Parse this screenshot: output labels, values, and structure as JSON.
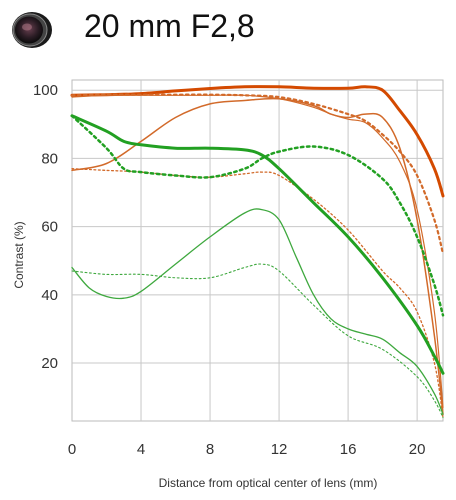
{
  "header": {
    "title": "20 mm F2,8",
    "icon": "lens-icon"
  },
  "chart_data": {
    "type": "line",
    "title": "20 mm F2,8",
    "xlabel": "Distance from optical center of lens (mm)",
    "ylabel": "Contrast (%)",
    "xlim": [
      0,
      21.5
    ],
    "ylim": [
      3,
      103
    ],
    "xticks": [
      "0",
      "4",
      "8",
      "12",
      "16",
      "20"
    ],
    "xtick_values": [
      0,
      4,
      8,
      12,
      16,
      20
    ],
    "yticks": [
      "20",
      "40",
      "60",
      "80",
      "100"
    ],
    "ytick_values": [
      20,
      40,
      60,
      80,
      100
    ],
    "grid": true,
    "legend": "none",
    "series": [
      {
        "color": "#d44a00",
        "width": 3,
        "dash": "solid",
        "x": [
          0,
          2,
          4,
          6,
          8,
          10,
          12,
          14,
          16,
          17,
          18,
          19,
          20,
          21,
          21.5
        ],
        "y": [
          98.5,
          98.7,
          99,
          99.8,
          100.5,
          101,
          101,
          100.6,
          100.6,
          101,
          100,
          94,
          87,
          77,
          69
        ]
      },
      {
        "color": "#d26a2a",
        "width": 1.5,
        "dash": "solid",
        "x": [
          0,
          2,
          4,
          6,
          8,
          10,
          12,
          14,
          15,
          16,
          17,
          18,
          19,
          20,
          21,
          21.5
        ],
        "y": [
          76.5,
          78.5,
          85,
          92,
          96,
          97,
          97.5,
          95.5,
          93,
          92,
          93,
          92,
          83,
          62,
          28,
          5
        ]
      },
      {
        "color": "#d26a2a",
        "width": 1.2,
        "dash": "solid",
        "x": [
          0,
          2,
          4,
          6,
          8,
          10,
          12,
          14,
          15,
          16,
          17,
          18,
          19,
          20,
          21,
          21.5
        ],
        "y": [
          98,
          98.5,
          98.5,
          98.5,
          98.5,
          98.5,
          97.5,
          95,
          93,
          91.5,
          90.5,
          86,
          79,
          65,
          35,
          7
        ]
      },
      {
        "color": "#d26a2a",
        "width": 2.2,
        "dash": "dotted",
        "x": [
          0,
          2,
          4,
          6,
          8,
          10,
          12,
          14,
          16,
          17,
          18,
          19,
          20,
          21,
          21.5
        ],
        "y": [
          98.5,
          98.7,
          98.7,
          98.7,
          98.7,
          98.5,
          98,
          96,
          93,
          91,
          87,
          82,
          75,
          62,
          52
        ]
      },
      {
        "color": "#d26a2a",
        "width": 1.3,
        "dash": "dotted",
        "x": [
          0,
          2,
          4,
          6,
          8,
          10,
          11,
          12,
          14,
          16,
          18,
          19,
          20,
          21,
          21.5
        ],
        "y": [
          77,
          76.5,
          76,
          75,
          74.5,
          75.5,
          76,
          75,
          68,
          59,
          47,
          42,
          35,
          20,
          4
        ]
      },
      {
        "color": "#22a022",
        "width": 3,
        "dash": "solid",
        "x": [
          0,
          2,
          3,
          4,
          6,
          8,
          10,
          11,
          12,
          14,
          16,
          18,
          20,
          21,
          21.5
        ],
        "y": [
          92.5,
          88,
          85,
          84,
          83,
          83,
          82.5,
          81,
          77,
          67,
          57,
          45,
          31,
          22,
          17
        ]
      },
      {
        "color": "#22a022",
        "width": 2.5,
        "dash": "dotted",
        "x": [
          0,
          2,
          3,
          4,
          6,
          8,
          10,
          11,
          12,
          14,
          16,
          18,
          19,
          20,
          21,
          21.5
        ],
        "y": [
          92.5,
          83,
          77,
          76,
          75,
          74.5,
          77,
          80,
          82,
          83.5,
          81,
          74,
          67,
          57,
          43,
          34
        ]
      },
      {
        "color": "#3ea83e",
        "width": 1.3,
        "dash": "solid",
        "x": [
          0,
          1,
          2,
          3,
          4,
          6,
          8,
          10,
          11,
          12,
          13,
          14,
          15,
          16,
          17,
          18,
          19,
          20,
          21,
          21.5
        ],
        "y": [
          48,
          42,
          39.5,
          39,
          41,
          49,
          57,
          64,
          65,
          62,
          51,
          40,
          33,
          30,
          28.5,
          27,
          23,
          19,
          11,
          5
        ]
      },
      {
        "color": "#3ea83e",
        "width": 1.1,
        "dash": "dotted",
        "x": [
          0,
          2,
          4,
          6,
          8,
          10,
          11,
          12,
          14,
          16,
          18,
          20,
          21,
          21.5
        ],
        "y": [
          47,
          46,
          46,
          45,
          45,
          48,
          49,
          47,
          37,
          28,
          24,
          16,
          9,
          4
        ]
      }
    ]
  }
}
